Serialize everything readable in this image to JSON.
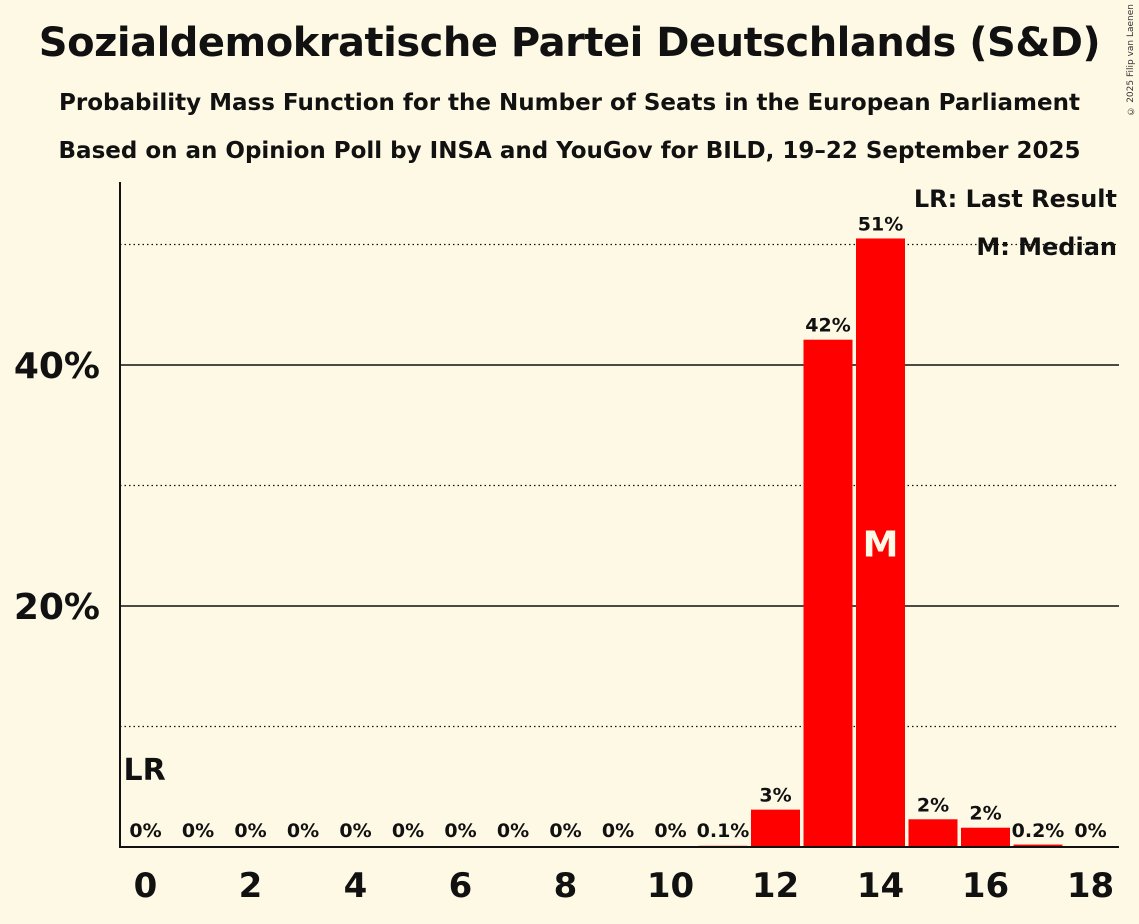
{
  "title": "Sozialdemokratische Partei Deutschlands (S&D)",
  "subtitle1": "Probability Mass Function for the Number of Seats in the European Parliament",
  "subtitle2": "Based on an Opinion Poll by INSA and YouGov for BILD, 19–22 September 2025",
  "copyright": "© 2025 Filip van Laenen",
  "legend": {
    "last_result": "LR: Last Result",
    "median": "M: Median"
  },
  "colors": {
    "background": "#fef9e5",
    "bar": "#ff0000"
  },
  "chart_data": {
    "type": "bar",
    "title": "Sozialdemokratische Partei Deutschlands (S&D)",
    "xlabel": "",
    "ylabel": "",
    "categories": [
      0,
      1,
      2,
      3,
      4,
      5,
      6,
      7,
      8,
      9,
      10,
      11,
      12,
      13,
      14,
      15,
      16,
      17,
      18
    ],
    "values": [
      0,
      0,
      0,
      0,
      0,
      0,
      0,
      0,
      0,
      0,
      0,
      0.1,
      3.1,
      42.1,
      50.5,
      2.3,
      1.6,
      0.2,
      0
    ],
    "data_labels": [
      "0%",
      "0%",
      "0%",
      "0%",
      "0%",
      "0%",
      "0%",
      "0%",
      "0%",
      "0%",
      "0%",
      "0.1%",
      "3%",
      "42%",
      "51%",
      "2%",
      "2%",
      "0.2%",
      "0%"
    ],
    "x_ticks": [
      "0",
      "2",
      "4",
      "6",
      "8",
      "10",
      "12",
      "14",
      "16",
      "18"
    ],
    "y_ticks": [
      {
        "value": 20,
        "label": "20%"
      },
      {
        "value": 40,
        "label": "40%"
      }
    ],
    "y_dotted_gridlines": [
      10,
      30,
      50
    ],
    "ylim": [
      0,
      55
    ],
    "last_result": {
      "seat": 0,
      "label": "LR"
    },
    "median": {
      "seat": 14,
      "label": "M"
    }
  }
}
